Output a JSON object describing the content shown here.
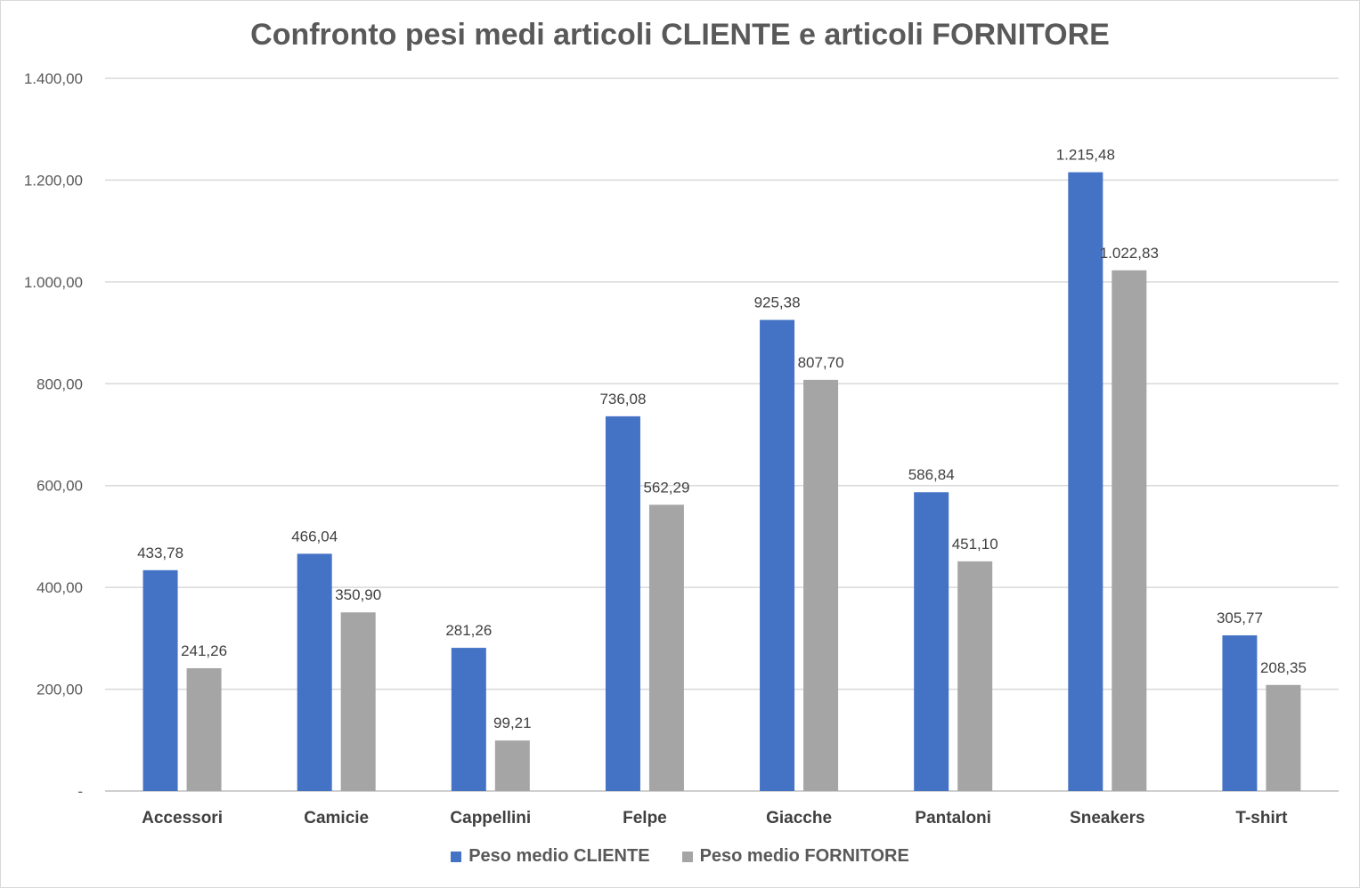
{
  "chart_data": {
    "type": "bar",
    "title": "Confronto pesi medi articoli CLIENTE e articoli FORNITORE",
    "categories": [
      "Accessori",
      "Camicie",
      "Cappellini",
      "Felpe",
      "Giacche",
      "Pantaloni",
      "Sneakers",
      "T-shirt"
    ],
    "series": [
      {
        "name": "Peso medio CLIENTE",
        "color": "#4472c4",
        "values": [
          433.78,
          466.04,
          281.26,
          736.08,
          925.38,
          586.84,
          1215.48,
          305.77
        ],
        "labels": [
          "433,78",
          "466,04",
          "281,26",
          "736,08",
          "925,38",
          "586,84",
          "1.215,48",
          "305,77"
        ]
      },
      {
        "name": "Peso medio FORNITORE",
        "color": "#a5a5a5",
        "values": [
          241.26,
          350.9,
          99.21,
          562.29,
          807.7,
          451.1,
          1022.83,
          208.35
        ],
        "labels": [
          "241,26",
          "350,90",
          "99,21",
          "562,29",
          "807,70",
          "451,10",
          "1.022,83",
          "208,35"
        ]
      }
    ],
    "ylim": [
      0,
      1400
    ],
    "yticks": [
      0,
      200,
      400,
      600,
      800,
      1000,
      1200,
      1400
    ],
    "ytick_labels": [
      "-",
      "200,00",
      "400,00",
      "600,00",
      "800,00",
      "1.000,00",
      "1.200,00",
      "1.400,00"
    ],
    "xlabel": "",
    "ylabel": "",
    "grid": true,
    "legend_position": "bottom"
  }
}
